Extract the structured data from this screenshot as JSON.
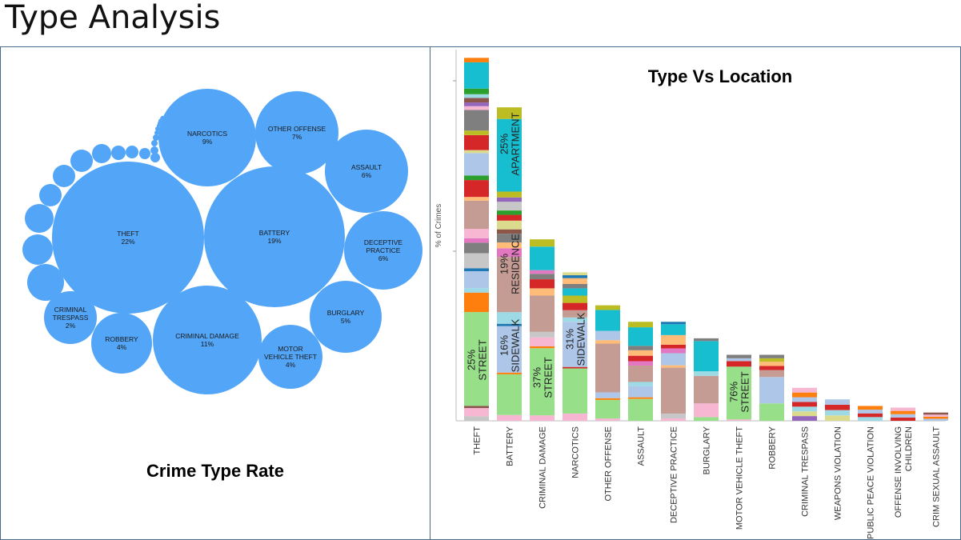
{
  "page_title": "Type Analysis",
  "chart_data": [
    {
      "type": "bubble",
      "title": "Crime Type Rate",
      "color": "#52a5f7",
      "bubbles": [
        {
          "name": "THEFT",
          "label": [
            "THEFT"
          ],
          "pct": "22%",
          "value": 22
        },
        {
          "name": "BATTERY",
          "label": [
            "BATTERY"
          ],
          "pct": "19%",
          "value": 19
        },
        {
          "name": "CRIMINAL DAMAGE",
          "label": [
            "CRIMINAL DAMAGE"
          ],
          "pct": "11%",
          "value": 11
        },
        {
          "name": "NARCOTICS",
          "label": [
            "NARCOTICS"
          ],
          "pct": "9%",
          "value": 9
        },
        {
          "name": "OTHER OFFENSE",
          "label": [
            "OTHER OFFENSE"
          ],
          "pct": "7%",
          "value": 7
        },
        {
          "name": "ASSAULT",
          "label": [
            "ASSAULT"
          ],
          "pct": "6%",
          "value": 6
        },
        {
          "name": "DECEPTIVE PRACTICE",
          "label": [
            "DECEPTIVE",
            "PRACTICE"
          ],
          "pct": "6%",
          "value": 6
        },
        {
          "name": "BURGLARY",
          "label": [
            "BURGLARY"
          ],
          "pct": "5%",
          "value": 5
        },
        {
          "name": "MOTOR VEHICLE THEFT",
          "label": [
            "MOTOR",
            "VEHICLE THEFT"
          ],
          "pct": "4%",
          "value": 4
        },
        {
          "name": "ROBBERY",
          "label": [
            "ROBBERY"
          ],
          "pct": "4%",
          "value": 4
        },
        {
          "name": "CRIMINAL TRESPASS",
          "label": [
            "CRIMINAL",
            "TRESPASS"
          ],
          "pct": "2%",
          "value": 2
        }
      ],
      "unlabeled_bubble_count": 22
    },
    {
      "type": "bar",
      "stacked": true,
      "title": "Type Vs Location",
      "ylabel": "% of Crimes",
      "categories": [
        "THEFT",
        "BATTERY",
        "CRIMINAL DAMAGE",
        "NARCOTICS",
        "OTHER OFFENSE",
        "ASSAULT",
        "DECEPTIVE PRACTICE",
        "BURGLARY",
        "MOTOR VEHICLE THEFT",
        "ROBBERY",
        "CRIMINAL TRESPASS",
        "WEAPONS VIOLATION",
        "PUBLIC PEACE VIOLATION",
        "OFFENSE INVOLVING CHILDREN",
        "CRIM SEXUAL ASSAULT"
      ],
      "category_lines": [
        [
          "THEFT"
        ],
        [
          "BATTERY"
        ],
        [
          "CRIMINAL DAMAGE"
        ],
        [
          "NARCOTICS"
        ],
        [
          "OTHER OFFENSE"
        ],
        [
          "ASSAULT"
        ],
        [
          "DECEPTIVE PRACTICE"
        ],
        [
          "BURGLARY"
        ],
        [
          "MOTOR VEHICLE THEFT"
        ],
        [
          "ROBBERY"
        ],
        [
          "CRIMINAL TRESPASS"
        ],
        [
          "WEAPONS VIOLATION"
        ],
        [
          "PUBLIC PEACE VIOLATION"
        ],
        [
          "OFFENSE INVOLVING",
          "CHILDREN"
        ],
        [
          "CRIM SEXUAL ASSAULT"
        ]
      ],
      "totals": [
        22,
        19,
        11,
        9,
        7,
        6,
        6,
        5,
        4,
        4,
        2,
        1.3,
        0.9,
        0.8,
        0.5
      ],
      "ylim": [
        0,
        22.5
      ],
      "annotations": [
        {
          "category": "THEFT",
          "lines": [
            "25%",
            "STREET"
          ]
        },
        {
          "category": "BATTERY",
          "lines": [
            "25%",
            "APARTMENT"
          ]
        },
        {
          "category": "BATTERY",
          "lines": [
            "19%",
            "RESIDENCE"
          ]
        },
        {
          "category": "BATTERY",
          "lines": [
            "16%",
            "SIDEWALK"
          ]
        },
        {
          "category": "CRIMINAL DAMAGE",
          "lines": [
            "37%",
            "STREET"
          ]
        },
        {
          "category": "NARCOTICS",
          "lines": [
            "31%",
            "SIDEWALK"
          ]
        },
        {
          "category": "MOTOR VEHICLE THEFT",
          "lines": [
            "76%",
            "STREET"
          ]
        }
      ],
      "location_colors": {
        "street": "#98df8a",
        "sidewalk": "#aec7e8",
        "residence": "#c49c94",
        "apartment": "#17becf",
        "pink": "#f7b6d2",
        "orange": "#ff7f0e",
        "red": "#d62728",
        "gray": "#7f7f7f",
        "lightgray": "#c7c7c7",
        "olive": "#bcbd22",
        "green": "#2ca02c",
        "purple": "#9467bd",
        "brown": "#8c564b",
        "magenta": "#e377c2",
        "lightorange": "#ffbb78",
        "cream": "#dbdb8d",
        "blue": "#1f77b4",
        "lightblue": "#9edae5"
      }
    }
  ]
}
